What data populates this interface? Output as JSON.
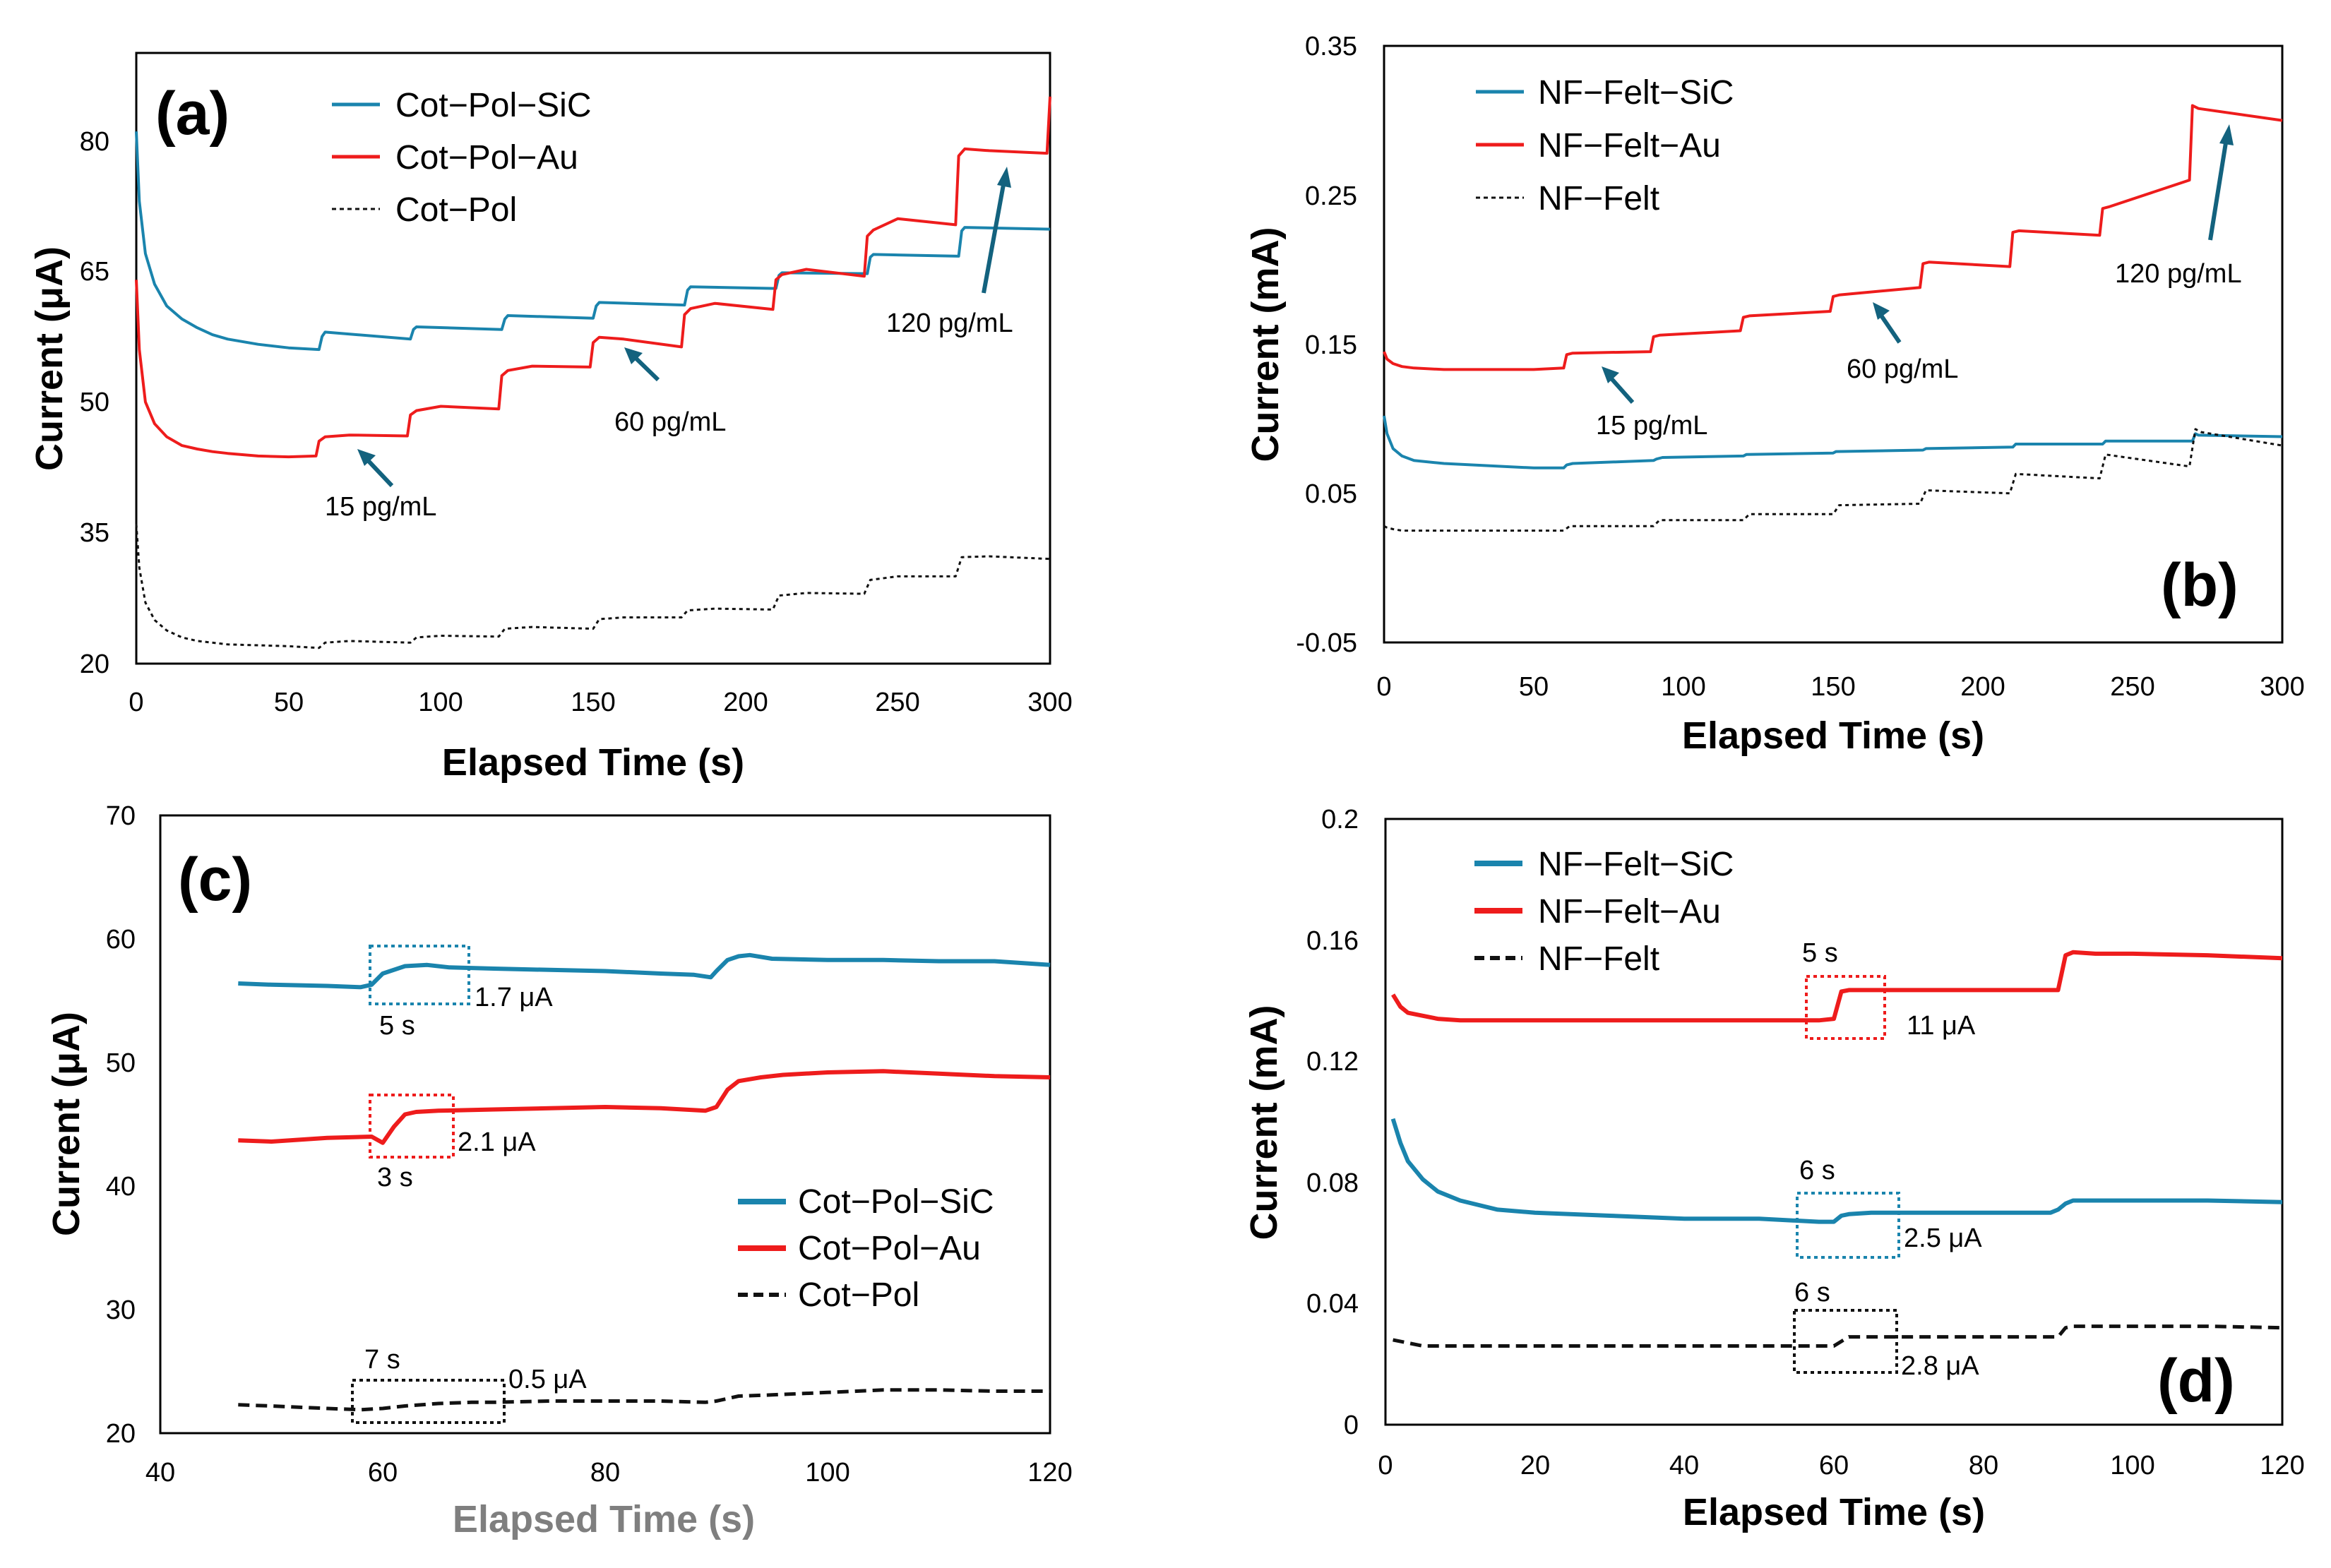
{
  "colors": {
    "sic": "#1a84ad",
    "au": "#ee1c1c",
    "base": "#111111",
    "arrow": "#13627e"
  },
  "chart_data": [
    {
      "type": "line",
      "panel_label": "(a)",
      "xlabel": "Elapsed Time (s)",
      "ylabel": "Current (μA)",
      "xlim": [
        0,
        300
      ],
      "ylim": [
        20,
        90
      ],
      "xticks": [
        "0",
        "50",
        "100",
        "150",
        "200",
        "250",
        "300"
      ],
      "yticks": [
        "20",
        "35",
        "50",
        "65",
        "80"
      ],
      "legend": [
        "Cot−Pol−SiC",
        "Cot−Pol−Au",
        "Cot−Pol"
      ],
      "series": [
        {
          "name": "Cot−Pol−SiC",
          "x": [
            0,
            1,
            3,
            6,
            10,
            15,
            20,
            25,
            30,
            40,
            50,
            60,
            61,
            62,
            90,
            91,
            92,
            120,
            121,
            122,
            150,
            151,
            152,
            180,
            181,
            182,
            210,
            211,
            212,
            240,
            241,
            242,
            270,
            271,
            272,
            300
          ],
          "y": [
            81,
            73,
            67,
            63.5,
            61,
            59.5,
            58.5,
            57.7,
            57.2,
            56.6,
            56.2,
            56,
            57.5,
            58,
            57.2,
            58.3,
            58.6,
            58.3,
            59.5,
            59.9,
            59.6,
            61,
            61.4,
            61.1,
            62.8,
            63.2,
            63,
            64.5,
            64.8,
            64.7,
            66.6,
            66.9,
            66.7,
            69.6,
            70,
            69.8
          ]
        },
        {
          "name": "Cot−Pol−Au",
          "x": [
            0,
            1,
            3,
            6,
            10,
            15,
            20,
            25,
            30,
            40,
            50,
            59,
            60,
            62,
            70,
            89,
            90,
            92,
            100,
            119,
            120,
            122,
            130,
            149,
            150,
            152,
            160,
            179,
            180,
            182,
            190,
            209,
            210,
            212,
            220,
            239,
            240,
            242,
            250,
            269,
            270,
            272,
            280,
            299,
            300
          ],
          "y": [
            64,
            56,
            50,
            47.5,
            46,
            45,
            44.6,
            44.3,
            44.1,
            43.8,
            43.7,
            43.8,
            45.5,
            46,
            46.2,
            46.1,
            48.5,
            49,
            49.5,
            49.2,
            53,
            53.6,
            54.1,
            54,
            56.8,
            57.4,
            57.2,
            56.3,
            60,
            60.7,
            61.3,
            60.6,
            64,
            64.6,
            65.2,
            64.4,
            69,
            69.7,
            71,
            70.3,
            78.2,
            79,
            78.8,
            78.5,
            85
          ]
        },
        {
          "name": "Cot−Pol",
          "x": [
            0,
            1,
            3,
            6,
            10,
            15,
            20,
            25,
            30,
            40,
            50,
            60,
            62,
            70,
            90,
            92,
            100,
            119,
            121,
            130,
            150,
            152,
            160,
            179,
            181,
            190,
            209,
            211,
            220,
            239,
            241,
            250,
            269,
            271,
            280,
            300
          ],
          "y": [
            36,
            31,
            27,
            25,
            23.8,
            23,
            22.6,
            22.4,
            22.2,
            22.1,
            22,
            21.8,
            22.4,
            22.6,
            22.4,
            23,
            23.2,
            23.1,
            24,
            24.2,
            24,
            25.1,
            25.3,
            25.3,
            26.1,
            26.3,
            26.2,
            27.8,
            28.1,
            28,
            29.6,
            30,
            30,
            32.2,
            32.3,
            32
          ]
        }
      ],
      "annotations": [
        "15 pg/mL",
        "60 pg/mL",
        "120 pg/mL"
      ]
    },
    {
      "type": "line",
      "panel_label": "(b)",
      "xlabel": "Elapsed Time (s)",
      "ylabel": "Current (mA)",
      "xlim": [
        0,
        300
      ],
      "ylim": [
        -0.05,
        0.35
      ],
      "xticks": [
        "0",
        "50",
        "100",
        "150",
        "200",
        "250",
        "300"
      ],
      "yticks": [
        "-0.05",
        "0.05",
        "0.15",
        "0.25",
        "0.35"
      ],
      "legend": [
        "NF−Felt−SiC",
        "NF−Felt−Au",
        "NF−Felt"
      ],
      "series": [
        {
          "name": "NF−Felt−SiC",
          "x": [
            0,
            1,
            3,
            6,
            10,
            20,
            30,
            40,
            50,
            60,
            61,
            63,
            90,
            91,
            93,
            120,
            121,
            150,
            151,
            180,
            181,
            210,
            211,
            240,
            241,
            270,
            271,
            272,
            300
          ],
          "y": [
            0.102,
            0.09,
            0.08,
            0.075,
            0.072,
            0.07,
            0.069,
            0.068,
            0.067,
            0.067,
            0.069,
            0.07,
            0.072,
            0.073,
            0.074,
            0.075,
            0.076,
            0.077,
            0.078,
            0.079,
            0.08,
            0.081,
            0.083,
            0.083,
            0.085,
            0.085,
            0.09,
            0.089,
            0.088
          ]
        },
        {
          "name": "NF−Felt−Au",
          "x": [
            0,
            1,
            3,
            6,
            10,
            20,
            30,
            40,
            50,
            60,
            61,
            63,
            89,
            90,
            92,
            119,
            120,
            122,
            149,
            150,
            152,
            179,
            180,
            182,
            209,
            210,
            212,
            239,
            240,
            242,
            269,
            270,
            272,
            300
          ],
          "y": [
            0.145,
            0.14,
            0.137,
            0.135,
            0.134,
            0.133,
            0.133,
            0.133,
            0.133,
            0.134,
            0.143,
            0.144,
            0.145,
            0.155,
            0.156,
            0.159,
            0.168,
            0.169,
            0.172,
            0.182,
            0.183,
            0.188,
            0.204,
            0.205,
            0.202,
            0.225,
            0.226,
            0.223,
            0.241,
            0.242,
            0.26,
            0.31,
            0.308,
            0.3
          ]
        },
        {
          "name": "NF−Felt",
          "x": [
            0,
            1,
            3,
            6,
            10,
            20,
            30,
            40,
            50,
            60,
            62,
            90,
            92,
            120,
            122,
            150,
            152,
            179,
            181,
            209,
            211,
            239,
            241,
            269,
            271,
            273,
            300
          ],
          "y": [
            0.028,
            0.027,
            0.026,
            0.025,
            0.025,
            0.025,
            0.025,
            0.025,
            0.025,
            0.025,
            0.028,
            0.028,
            0.032,
            0.032,
            0.036,
            0.036,
            0.042,
            0.043,
            0.052,
            0.05,
            0.063,
            0.06,
            0.076,
            0.068,
            0.093,
            0.091,
            0.082
          ]
        }
      ],
      "annotations": [
        "15 pg/mL",
        "60 pg/mL",
        "120 pg/mL"
      ]
    },
    {
      "type": "line",
      "panel_label": "(c)",
      "xlabel": "Elapsed Time (s)",
      "ylabel": "Current (μA)",
      "xlim": [
        40,
        120
      ],
      "ylim": [
        20,
        70
      ],
      "xticks": [
        "40",
        "60",
        "80",
        "100",
        "120"
      ],
      "yticks": [
        "20",
        "30",
        "40",
        "50",
        "60",
        "70"
      ],
      "legend": [
        "Cot−Pol−SiC",
        "Cot−Pol−Au",
        "Cot−Pol"
      ],
      "series": [
        {
          "name": "Cot−Pol−SiC",
          "x": [
            47,
            50,
            55,
            58,
            59,
            60,
            62,
            64,
            66,
            70,
            75,
            80,
            85,
            88,
            89.5,
            90,
            91,
            92,
            93,
            95,
            100,
            105,
            110,
            115,
            120
          ],
          "y": [
            56.4,
            56.3,
            56.2,
            56.1,
            56.3,
            57.2,
            57.8,
            57.9,
            57.7,
            57.6,
            57.5,
            57.4,
            57.2,
            57.1,
            56.9,
            57.4,
            58.3,
            58.6,
            58.7,
            58.4,
            58.3,
            58.3,
            58.2,
            58.2,
            57.9
          ]
        },
        {
          "name": "Cot−Pol−Au",
          "x": [
            47,
            50,
            55,
            59,
            60,
            61,
            62,
            63,
            65,
            70,
            75,
            80,
            85,
            89,
            90,
            91,
            92,
            94,
            96,
            100,
            105,
            110,
            115,
            120
          ],
          "y": [
            43.7,
            43.6,
            43.9,
            44,
            43.5,
            44.8,
            45.8,
            46,
            46.1,
            46.2,
            46.3,
            46.4,
            46.3,
            46.1,
            46.4,
            47.8,
            48.5,
            48.8,
            49,
            49.2,
            49.3,
            49.1,
            48.9,
            48.8
          ]
        },
        {
          "name": "Cot−Pol",
          "x": [
            47,
            50,
            55,
            58,
            60,
            62,
            65,
            68,
            70,
            75,
            80,
            85,
            89,
            90,
            92,
            95,
            100,
            105,
            110,
            115,
            120
          ],
          "y": [
            22.3,
            22.2,
            22,
            21.9,
            22,
            22.2,
            22.4,
            22.5,
            22.5,
            22.6,
            22.6,
            22.6,
            22.5,
            22.6,
            23,
            23.1,
            23.3,
            23.5,
            23.5,
            23.4,
            23.4
          ]
        }
      ],
      "boxes": [
        {
          "time": "5 s",
          "delta": "1.7 μA"
        },
        {
          "time": "3 s",
          "delta": "2.1 μA"
        },
        {
          "time": "7 s",
          "delta": "0.5 μA"
        }
      ]
    },
    {
      "type": "line",
      "panel_label": "(d)",
      "xlabel": "Elapsed Time (s)",
      "ylabel": "Current (mA)",
      "xlim": [
        0,
        120
      ],
      "ylim": [
        0,
        0.2
      ],
      "xticks": [
        "0",
        "20",
        "40",
        "60",
        "80",
        "100",
        "120"
      ],
      "yticks": [
        "0",
        "0.04",
        "0.08",
        "0.12",
        "0.16",
        "0.2"
      ],
      "legend": [
        "NF−Felt−SiC",
        "NF−Felt−Au",
        "NF−Felt"
      ],
      "series": [
        {
          "name": "NF−Felt−SiC",
          "x": [
            1,
            2,
            3,
            5,
            7,
            10,
            15,
            20,
            30,
            40,
            50,
            58,
            60,
            61,
            62,
            65,
            70,
            80,
            89,
            90,
            91,
            92,
            95,
            100,
            110,
            120
          ],
          "y": [
            0.101,
            0.093,
            0.087,
            0.081,
            0.077,
            0.074,
            0.071,
            0.07,
            0.069,
            0.068,
            0.068,
            0.067,
            0.067,
            0.069,
            0.0695,
            0.07,
            0.07,
            0.07,
            0.07,
            0.071,
            0.073,
            0.074,
            0.074,
            0.074,
            0.074,
            0.0735
          ]
        },
        {
          "name": "NF−Felt−Au",
          "x": [
            1,
            2,
            3,
            5,
            7,
            10,
            20,
            30,
            40,
            50,
            58,
            60,
            61,
            62,
            65,
            70,
            80,
            90,
            91,
            92,
            95,
            100,
            110,
            120
          ],
          "y": [
            0.142,
            0.138,
            0.136,
            0.135,
            0.134,
            0.1335,
            0.1335,
            0.1335,
            0.1335,
            0.1335,
            0.1335,
            0.134,
            0.143,
            0.1435,
            0.1435,
            0.1435,
            0.1435,
            0.1435,
            0.155,
            0.156,
            0.1555,
            0.1555,
            0.155,
            0.154
          ]
        },
        {
          "name": "NF−Felt",
          "x": [
            1,
            3,
            5,
            10,
            20,
            30,
            40,
            50,
            58,
            60,
            61,
            62,
            65,
            70,
            80,
            89,
            90,
            91,
            92,
            95,
            100,
            110,
            120
          ],
          "y": [
            0.028,
            0.027,
            0.026,
            0.026,
            0.026,
            0.026,
            0.026,
            0.026,
            0.026,
            0.026,
            0.0275,
            0.029,
            0.029,
            0.029,
            0.029,
            0.029,
            0.029,
            0.032,
            0.0325,
            0.0325,
            0.0325,
            0.0325,
            0.032
          ]
        }
      ],
      "boxes": [
        {
          "time": "5 s",
          "delta": "11 μA"
        },
        {
          "time": "6 s",
          "delta": "2.5 μA"
        },
        {
          "time": "6 s",
          "delta": "2.8 μA"
        }
      ]
    }
  ]
}
